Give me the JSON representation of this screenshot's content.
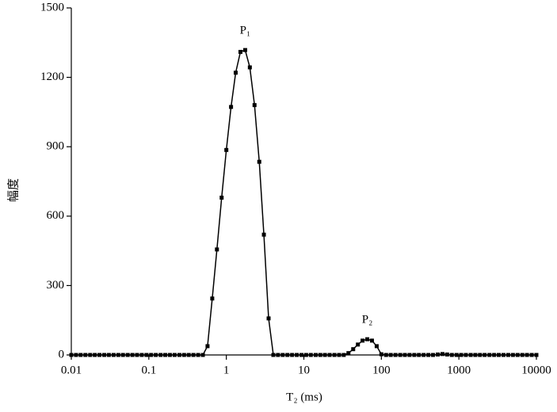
{
  "chart_data": {
    "type": "line",
    "x_label": "T₂ (ms)",
    "y_label": "幅度",
    "xlog": true,
    "xlim": [
      0.01,
      10000
    ],
    "xticks": [
      0.01,
      0.1,
      1,
      10,
      100,
      1000,
      10000
    ],
    "ylim": [
      0,
      1500
    ],
    "yticks": [
      0,
      300,
      600,
      900,
      1200,
      1500
    ],
    "annotations": [
      {
        "text": "P₁",
        "x": 1.75,
        "y": 1400
      },
      {
        "text": "P₂",
        "x": 65.8,
        "y": 150
      }
    ],
    "x": [
      0.01,
      0.0115,
      0.0132,
      0.0152,
      0.0175,
      0.0201,
      0.0231,
      0.0266,
      0.0305,
      0.0351,
      0.0404,
      0.0464,
      0.0534,
      0.0614,
      0.0705,
      0.0811,
      0.0933,
      0.107,
      0.123,
      0.142,
      0.163,
      0.187,
      0.215,
      0.248,
      0.285,
      0.327,
      0.376,
      0.433,
      0.498,
      0.572,
      0.658,
      0.756,
      0.87,
      1,
      1.15,
      1.32,
      1.52,
      1.75,
      2.01,
      2.31,
      2.66,
      3.05,
      3.51,
      4.04,
      4.64,
      5.34,
      6.14,
      7.05,
      8.11,
      9.33,
      10.7,
      12.3,
      14.2,
      16.3,
      18.7,
      21.5,
      24.8,
      28.5,
      32.7,
      37.6,
      43.3,
      49.8,
      57.2,
      65.8,
      75.6,
      87,
      100,
      115,
      132,
      152,
      175,
      201,
      231,
      266,
      305,
      351,
      404,
      464,
      534,
      614,
      705,
      811,
      933,
      1070,
      1230,
      1420,
      1630,
      1870,
      2150,
      2480,
      2850,
      3270,
      3760,
      4330,
      4980,
      5720,
      6580,
      7560,
      8700,
      10000
    ],
    "series": [
      {
        "color": "#000000",
        "values": [
          0,
          0,
          0,
          0,
          0,
          0,
          0,
          0,
          0,
          0,
          0,
          0,
          0,
          0,
          0,
          0,
          0,
          0,
          0,
          0,
          0,
          0,
          0,
          0,
          0,
          0,
          0,
          0,
          0,
          38,
          244,
          456,
          680,
          886,
          1072,
          1220,
          1310,
          1318,
          1243,
          1080,
          835,
          520,
          158,
          0,
          0,
          0,
          0,
          0,
          0,
          0,
          0,
          0,
          0,
          0,
          0,
          0,
          0,
          0,
          0,
          8,
          25,
          45,
          62,
          68,
          62,
          38,
          3,
          0,
          0,
          0,
          0,
          0,
          0,
          0,
          0,
          0,
          0,
          0,
          2,
          4,
          2,
          0,
          0,
          0,
          0,
          0,
          0,
          0,
          0,
          0,
          0,
          0,
          0,
          0,
          0,
          0,
          0,
          0,
          0,
          0
        ]
      }
    ]
  }
}
